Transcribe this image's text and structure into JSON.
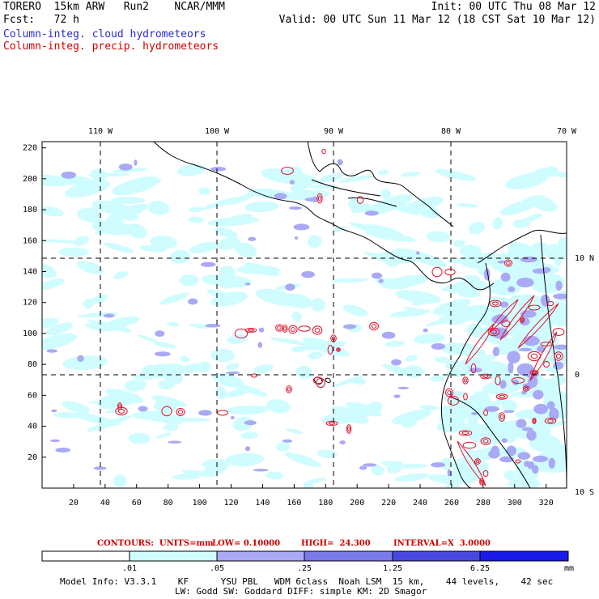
{
  "header": {
    "left1": "TORERO  15km ARW   Run2    NCAR/MMM",
    "left2": "Fcst:   72 h",
    "right1": "Init: 00 UTC Thu 08 Mar 12",
    "right2": "Valid: 00 UTC Sun 11 Mar 12 (18 CST Sat 10 Mar 12)",
    "field1": "Column-integ. cloud hydrometeors",
    "field2": "Column-integ. precip. hydrometeors"
  },
  "map": {
    "lon_labels": [
      "110 W",
      "100 W",
      "90 W",
      "80 W",
      "70 W"
    ],
    "lat_labels": [
      "10 N",
      "0",
      "10 S"
    ],
    "y_ticks": [
      "220",
      "200",
      "180",
      "160",
      "140",
      "120",
      "100",
      "80",
      "60",
      "40",
      "20"
    ],
    "x_ticks": [
      "20",
      "40",
      "60",
      "80",
      "100",
      "120",
      "140",
      "160",
      "180",
      "200",
      "220",
      "240",
      "260",
      "280",
      "300",
      "320"
    ],
    "x_range": [
      0,
      333
    ],
    "y_range": [
      0,
      224
    ],
    "cloud_color": "#cffcff",
    "mid_color": "#a9a9f5",
    "precip_color": "#e0102a"
  },
  "contour_info": {
    "contours": "CONTOURS:  UNITS=mm",
    "low": "LOW= 0.10000",
    "high": "HIGH=  24.300",
    "interval": "INTERVAL=X  3.0000"
  },
  "colorbar": {
    "labels": [
      ".01",
      ".05",
      ".25",
      "1.25",
      "6.25"
    ],
    "units": "mm",
    "colors": [
      "#ffffff",
      "#cffcff",
      "#a9a9f5",
      "#7a7ae8",
      "#4848e0",
      "#1a1ae8"
    ]
  },
  "model_info": {
    "line1": "Model Info: V3.3.1    KF      YSU PBL   WDM 6class  Noah LSM  15 km,    44 levels,    42 sec",
    "line2": "LW: Godd SW: Goddard DIFF: simple KM: 2D Smagor"
  }
}
